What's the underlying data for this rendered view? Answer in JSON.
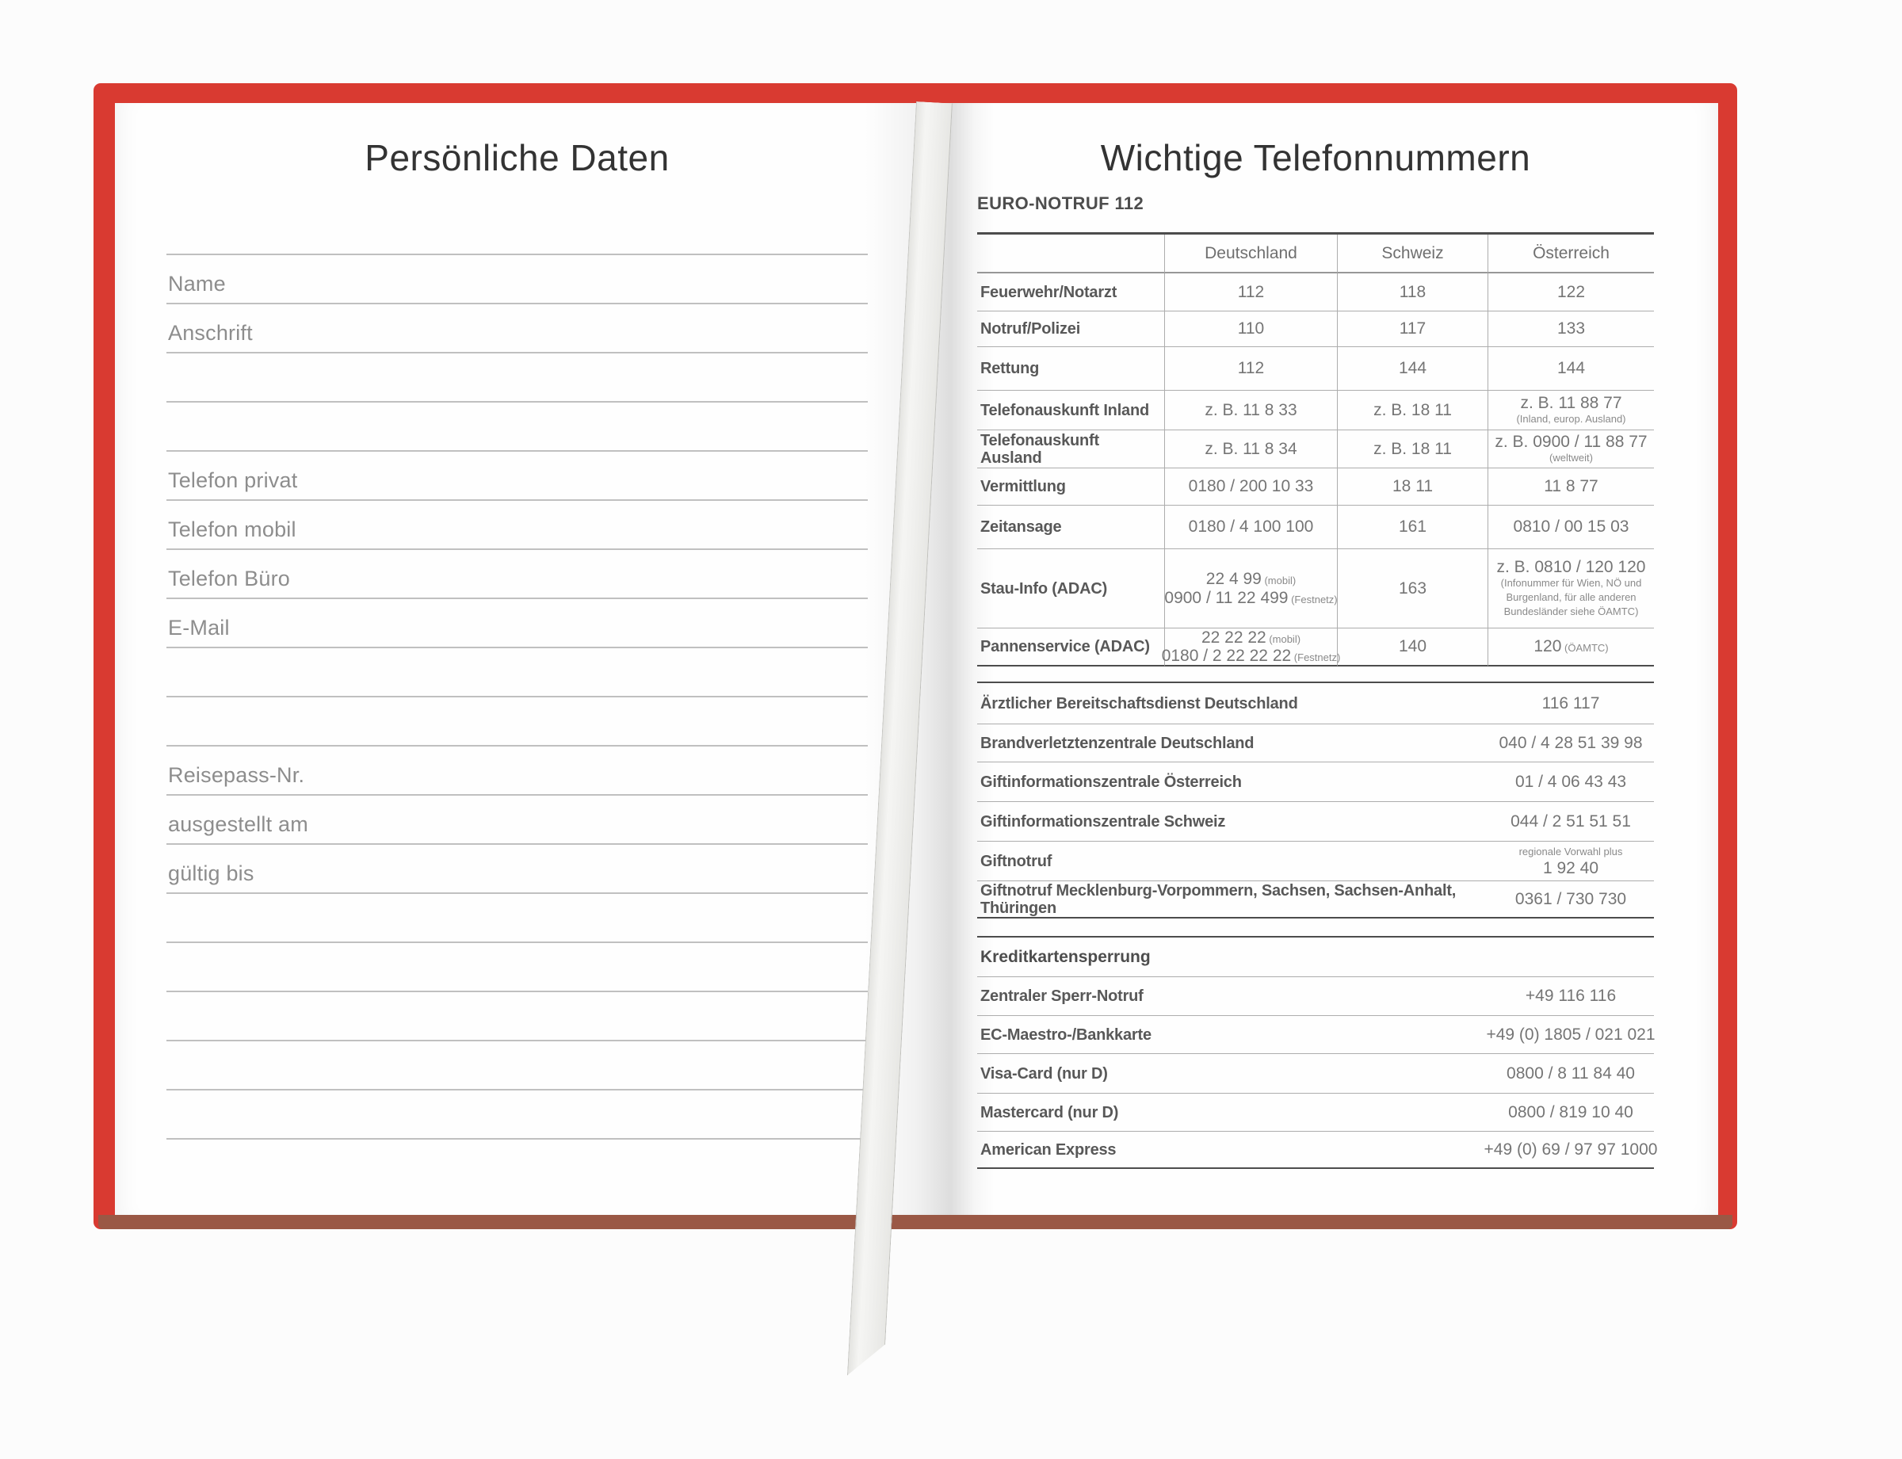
{
  "colors": {
    "cover_red": "#d93a31",
    "bottom_edge_brown": "#9a5845",
    "rule_dark": "#4c4c4c",
    "rule_light": "#adadad",
    "title_text": "#333333",
    "label_text": "#585858",
    "value_text": "#757575"
  },
  "left_page": {
    "title": "Persönliche Daten",
    "fields": [
      "",
      "Name",
      "Anschrift",
      "",
      "",
      "Telefon privat",
      "Telefon mobil",
      "Telefon Büro",
      "E-Mail",
      "",
      "",
      "Reisepass-Nr.",
      "ausgestellt am",
      "gültig bis",
      "",
      "",
      "",
      "",
      ""
    ]
  },
  "right_page": {
    "title": "Wichtige Telefonnummern",
    "euro_notruf": {
      "heading": "EURO-NOTRUF 112",
      "columns": [
        "Deutschland",
        "Schweiz",
        "Österreich"
      ],
      "rows": [
        {
          "label": "Feuerwehr/Notarzt",
          "cells": [
            [
              {
                "main": "112"
              }
            ],
            [
              {
                "main": "118"
              }
            ],
            [
              {
                "main": "122"
              }
            ]
          ]
        },
        {
          "label": "Notruf/Polizei",
          "cells": [
            [
              {
                "main": "110"
              }
            ],
            [
              {
                "main": "117"
              }
            ],
            [
              {
                "main": "133"
              }
            ]
          ]
        },
        {
          "label": "Rettung",
          "cells": [
            [
              {
                "main": "112"
              }
            ],
            [
              {
                "main": "144"
              }
            ],
            [
              {
                "main": "144"
              }
            ]
          ]
        },
        {
          "label": "Telefonauskunft Inland",
          "cells": [
            [
              {
                "main": "z. B. 11 8 33"
              }
            ],
            [
              {
                "main": "z. B. 18 11"
              }
            ],
            [
              {
                "main": "z. B. 11 88 77"
              },
              {
                "note": "(Inland, europ. Ausland)"
              }
            ]
          ]
        },
        {
          "label": "Telefonauskunft Ausland",
          "cells": [
            [
              {
                "main": "z. B. 11 8 34"
              }
            ],
            [
              {
                "main": "z. B. 18 11"
              }
            ],
            [
              {
                "main": "z. B. 0900 / 11 88 77"
              },
              {
                "note": "(weltweit)"
              }
            ]
          ]
        },
        {
          "label": "Vermittlung",
          "cells": [
            [
              {
                "main": "0180 / 200 10 33"
              }
            ],
            [
              {
                "main": "18 11"
              }
            ],
            [
              {
                "main": "11 8 77"
              }
            ]
          ]
        },
        {
          "label": "Zeitansage",
          "cells": [
            [
              {
                "main": "0180 / 4 100 100"
              }
            ],
            [
              {
                "main": "161"
              }
            ],
            [
              {
                "main": "0810 / 00 15 03"
              }
            ]
          ]
        },
        {
          "label": "Stau-Info (ADAC)",
          "cells": [
            [
              {
                "main": "22 4 99",
                "note": "(mobil)"
              },
              {
                "main": "0900 / 11 22 499",
                "note": "(Festnetz)"
              }
            ],
            [
              {
                "main": "163"
              }
            ],
            [
              {
                "main": "z. B. 0810 / 120 120"
              },
              {
                "note": "(Infonummer für Wien, NÖ und"
              },
              {
                "note": "Burgenland, für alle anderen"
              },
              {
                "note": "Bundesländer siehe ÖAMTC)"
              }
            ]
          ]
        },
        {
          "label": "Pannenservice (ADAC)",
          "cells": [
            [
              {
                "main": "22 22 22",
                "note": "(mobil)"
              },
              {
                "main": "0180 / 2 22 22 22",
                "note": "(Festnetz)"
              }
            ],
            [
              {
                "main": "140"
              }
            ],
            [
              {
                "main": "120",
                "note": "(ÖAMTC)"
              }
            ]
          ]
        }
      ]
    },
    "hotlines": {
      "rows": [
        {
          "label": "Ärztlicher Bereitschaftsdienst Deutschland",
          "value": [
            {
              "main": "116 117"
            }
          ]
        },
        {
          "label": "Brandverletztenzentrale Deutschland",
          "value": [
            {
              "main": "040 / 4 28 51 39 98"
            }
          ]
        },
        {
          "label": "Giftinformationszentrale Österreich",
          "value": [
            {
              "main": "01 / 4 06 43 43"
            }
          ]
        },
        {
          "label": "Giftinformationszentrale Schweiz",
          "value": [
            {
              "main": "044 / 2 51 51 51"
            }
          ]
        },
        {
          "label": "Giftnotruf",
          "value": [
            {
              "note": "regionale Vorwahl plus"
            },
            {
              "main": "1 92 40"
            }
          ]
        },
        {
          "label": "Giftnotruf Mecklenburg-Vorpommern, Sachsen, Sachsen-Anhalt, Thüringen",
          "value": [
            {
              "main": "0361 / 730 730"
            }
          ]
        }
      ]
    },
    "credit_cards": {
      "heading": "Kreditkartensperrung",
      "rows": [
        {
          "label": "Zentraler Sperr-Notruf",
          "value": [
            {
              "main": "+49 116 116"
            }
          ]
        },
        {
          "label": "EC-Maestro-/Bankkarte",
          "value": [
            {
              "main": "+49 (0) 1805 / 021 021"
            }
          ]
        },
        {
          "label": "Visa-Card (nur D)",
          "value": [
            {
              "main": "0800 / 8 11 84 40"
            }
          ]
        },
        {
          "label": "Mastercard (nur D)",
          "value": [
            {
              "main": "0800 / 819 10 40"
            }
          ]
        },
        {
          "label": "American Express",
          "value": [
            {
              "main": "+49 (0) 69 / 97 97 1000"
            }
          ]
        }
      ]
    }
  }
}
